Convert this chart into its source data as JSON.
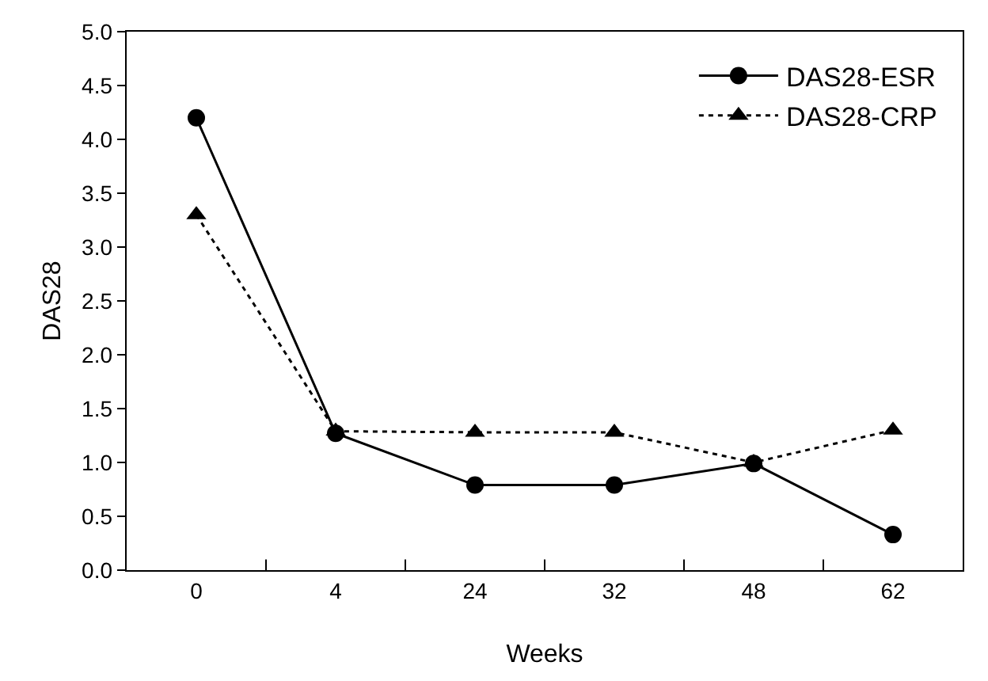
{
  "chart_data": {
    "type": "line",
    "xlabel": "Weeks",
    "ylabel": "DAS28",
    "categories": [
      "0",
      "4",
      "24",
      "32",
      "48",
      "62"
    ],
    "series": [
      {
        "name": "DAS28-ESR",
        "color": "#000000",
        "marker": "circle",
        "line_style": "solid",
        "values": [
          4.2,
          1.27,
          0.79,
          0.79,
          0.99,
          0.33
        ]
      },
      {
        "name": "DAS28-CRP",
        "color": "#000000",
        "marker": "triangle",
        "line_style": "dotted",
        "values": [
          3.3,
          1.29,
          1.28,
          1.28,
          1.0,
          1.3
        ]
      }
    ],
    "ylim": [
      0,
      5
    ],
    "yticks": [
      {
        "value": 0,
        "label": "0.0"
      },
      {
        "value": 0.5,
        "label": "0.5"
      },
      {
        "value": 1,
        "label": "1.0"
      },
      {
        "value": 1.5,
        "label": "1.5"
      },
      {
        "value": 2,
        "label": "2.0"
      },
      {
        "value": 2.5,
        "label": "2.5"
      },
      {
        "value": 3,
        "label": "3.0"
      },
      {
        "value": 3.5,
        "label": "3.5"
      },
      {
        "value": 4,
        "label": "4.0"
      },
      {
        "value": 4.5,
        "label": "4.5"
      },
      {
        "value": 5,
        "label": "5.0"
      }
    ],
    "grid": false,
    "legend": "top right"
  }
}
